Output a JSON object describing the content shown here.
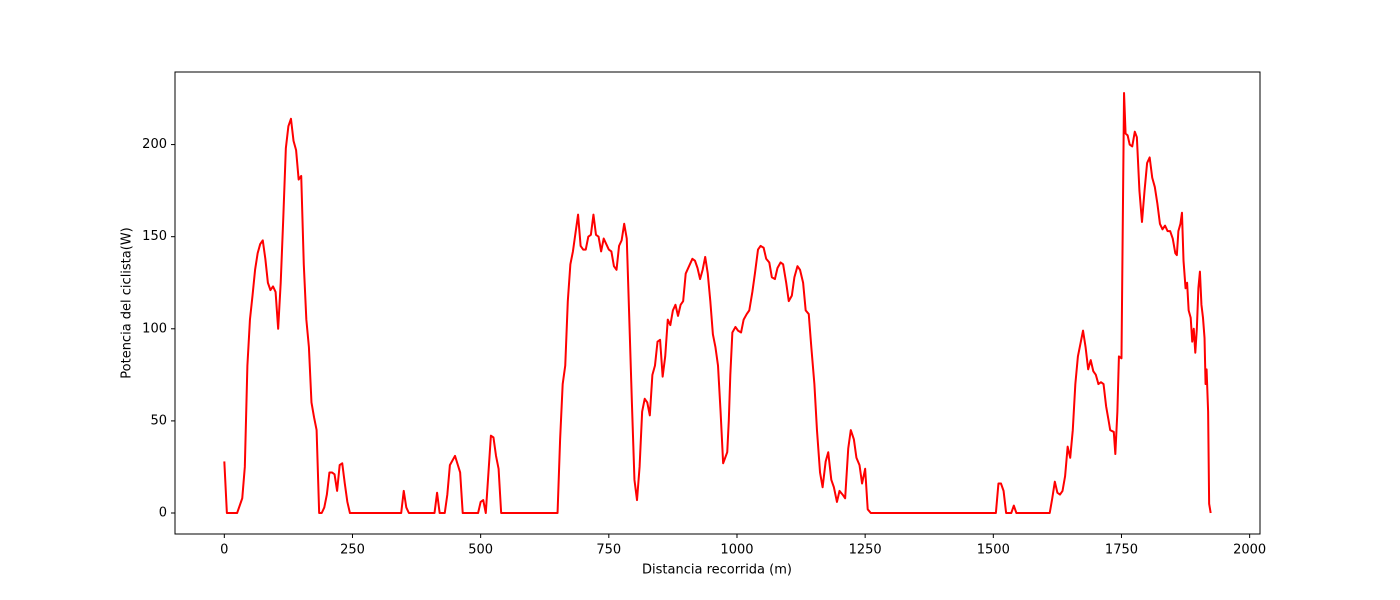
{
  "chart_data": {
    "type": "line",
    "x_label": "Distancia recorrida (m)",
    "y_label": "Potencia del ciclista(W)",
    "xlim": [
      -96.2,
      2020.2
    ],
    "ylim": [
      -11.4,
      239.4
    ],
    "xticks": [
      0,
      250,
      500,
      750,
      1000,
      1250,
      1500,
      1750,
      2000
    ],
    "yticks": [
      0,
      50,
      100,
      150,
      200
    ],
    "x": [
      0,
      5,
      25,
      35,
      40,
      45,
      50,
      55,
      60,
      65,
      70,
      75,
      80,
      85,
      90,
      95,
      100,
      105,
      110,
      115,
      120,
      125,
      130,
      135,
      140,
      145,
      150,
      155,
      160,
      165,
      170,
      175,
      180,
      185,
      190,
      195,
      200,
      205,
      210,
      215,
      220,
      225,
      230,
      235,
      240,
      245,
      345,
      350,
      355,
      360,
      410,
      415,
      420,
      430,
      435,
      440,
      450,
      460,
      465,
      495,
      500,
      505,
      510,
      520,
      525,
      530,
      535,
      540,
      650,
      655,
      660,
      665,
      670,
      675,
      680,
      685,
      690,
      695,
      700,
      705,
      710,
      715,
      720,
      725,
      730,
      735,
      740,
      745,
      750,
      755,
      760,
      765,
      770,
      775,
      780,
      785,
      790,
      795,
      800,
      805,
      810,
      815,
      820,
      825,
      830,
      835,
      840,
      845,
      850,
      855,
      860,
      865,
      870,
      875,
      880,
      885,
      890,
      895,
      900,
      913,
      918,
      923,
      928,
      933,
      938,
      943,
      948,
      953,
      958,
      963,
      968,
      973,
      977,
      981,
      984,
      987,
      991,
      997,
      1002,
      1008,
      1013,
      1019,
      1024,
      1030,
      1035,
      1041,
      1046,
      1052,
      1057,
      1063,
      1068,
      1074,
      1079,
      1085,
      1090,
      1096,
      1101,
      1107,
      1112,
      1118,
      1123,
      1129,
      1134,
      1140,
      1145,
      1151,
      1156,
      1162,
      1167,
      1173,
      1178,
      1184,
      1189,
      1195,
      1200,
      1206,
      1211,
      1217,
      1222,
      1228,
      1233,
      1239,
      1244,
      1250,
      1255,
      1261,
      1505,
      1510,
      1515,
      1520,
      1525,
      1535,
      1540,
      1545,
      1610,
      1615,
      1620,
      1625,
      1630,
      1635,
      1640,
      1645,
      1650,
      1655,
      1660,
      1665,
      1670,
      1675,
      1680,
      1685,
      1690,
      1695,
      1700,
      1705,
      1710,
      1715,
      1720,
      1725,
      1728,
      1735,
      1738,
      1742,
      1745,
      1750,
      1755,
      1758,
      1762,
      1766,
      1771,
      1776,
      1780,
      1785,
      1790,
      1795,
      1800,
      1805,
      1810,
      1815,
      1820,
      1825,
      1830,
      1835,
      1840,
      1845,
      1850,
      1855,
      1858,
      1861,
      1865,
      1868,
      1871,
      1875,
      1878,
      1881,
      1885,
      1888,
      1891,
      1894,
      1897,
      1900,
      1903,
      1906,
      1909,
      1912,
      1914,
      1916,
      1919,
      1921,
      1924
    ],
    "series": [
      {
        "color": "#ff0000",
        "values": [
          28,
          0,
          0,
          8,
          25,
          80,
          105,
          118,
          132,
          141,
          146,
          148,
          138,
          125,
          121,
          123,
          120,
          100,
          125,
          160,
          198,
          210,
          214,
          202,
          197,
          181,
          183,
          135,
          105,
          90,
          60,
          52,
          45,
          0,
          0,
          3,
          10,
          22,
          22,
          21,
          12,
          26,
          27,
          16,
          6,
          0,
          0,
          12,
          3,
          0,
          0,
          11,
          0,
          0,
          10,
          26,
          31,
          22,
          0,
          0,
          6,
          7,
          0,
          42,
          41,
          31,
          24,
          0,
          0,
          40,
          70,
          80,
          115,
          135,
          142,
          152,
          162,
          145,
          143,
          143,
          150,
          151,
          162,
          151,
          150,
          142,
          149,
          146,
          143,
          142,
          134,
          132,
          145,
          148,
          157,
          149,
          105,
          60,
          18,
          7,
          25,
          55,
          62,
          60,
          53,
          75,
          80,
          93,
          94,
          74,
          85,
          105,
          102,
          110,
          113,
          107,
          113,
          115,
          130,
          138,
          137,
          133,
          127,
          132,
          139,
          130,
          115,
          97,
          90,
          80,
          55,
          27,
          30,
          33,
          50,
          75,
          98,
          101,
          99,
          98,
          105,
          108,
          110,
          120,
          130,
          143,
          145,
          144,
          138,
          136,
          128,
          127,
          133,
          136,
          135,
          125,
          115,
          118,
          128,
          134,
          132,
          125,
          110,
          108,
          90,
          70,
          45,
          22,
          14,
          28,
          33,
          18,
          14,
          6,
          12,
          10,
          8,
          35,
          45,
          40,
          30,
          26,
          16,
          24,
          2,
          0,
          0,
          16,
          16,
          12,
          0,
          0,
          4,
          0,
          0,
          8,
          17,
          11,
          10,
          12,
          20,
          36,
          30,
          45,
          70,
          85,
          92,
          99,
          90,
          78,
          83,
          77,
          75,
          70,
          71,
          70,
          58,
          50,
          45,
          44,
          32,
          55,
          85,
          84,
          228,
          206,
          205,
          200,
          199,
          207,
          204,
          175,
          158,
          175,
          190,
          193,
          182,
          177,
          168,
          157,
          154,
          156,
          153,
          153,
          149,
          141,
          140,
          153,
          157,
          163,
          137,
          122,
          125,
          110,
          106,
          93,
          100,
          87,
          100,
          122,
          131,
          113,
          106,
          95,
          70,
          78,
          55,
          5,
          0
        ]
      }
    ]
  }
}
